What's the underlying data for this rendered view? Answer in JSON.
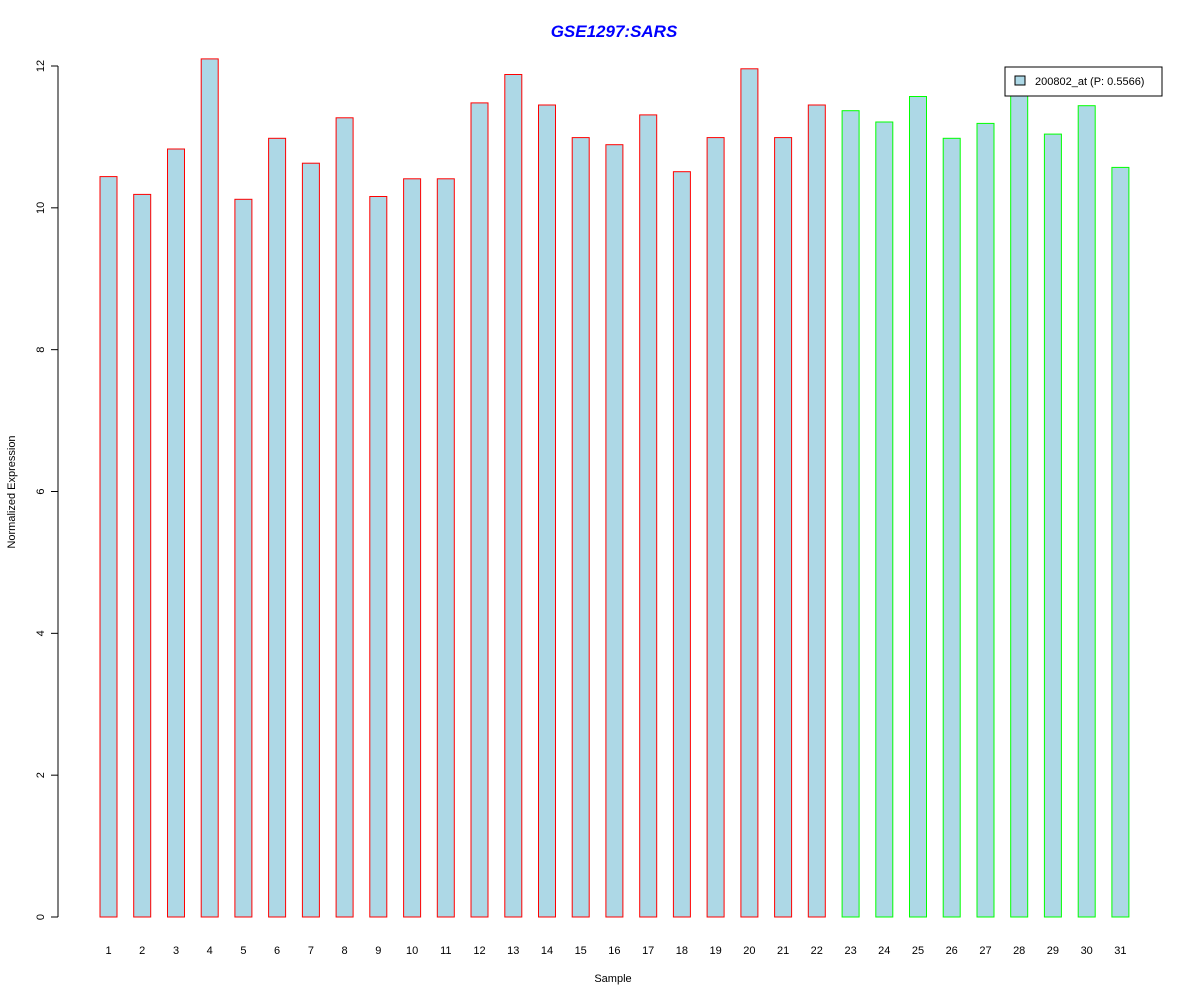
{
  "chart_data": {
    "type": "bar",
    "title": "GSE1297:SARS",
    "xlabel": "Sample",
    "ylabel": "Normalized Expression",
    "categories": [
      "1",
      "2",
      "3",
      "4",
      "5",
      "6",
      "7",
      "8",
      "9",
      "10",
      "11",
      "12",
      "13",
      "14",
      "15",
      "16",
      "17",
      "18",
      "19",
      "20",
      "21",
      "22",
      "23",
      "24",
      "25",
      "26",
      "27",
      "28",
      "29",
      "30",
      "31"
    ],
    "series": [
      {
        "name": "200802_at (P: 0.5566)",
        "values": [
          10.44,
          10.19,
          10.83,
          12.1,
          10.12,
          10.98,
          10.63,
          11.27,
          10.16,
          10.41,
          10.41,
          11.48,
          11.88,
          11.45,
          10.99,
          10.89,
          11.31,
          10.51,
          10.99,
          11.96,
          10.99,
          11.45,
          11.37,
          11.21,
          11.57,
          10.98,
          11.19,
          11.65,
          11.04,
          11.44,
          10.57
        ]
      }
    ],
    "groups": [
      "red",
      "red",
      "red",
      "red",
      "red",
      "red",
      "red",
      "red",
      "red",
      "red",
      "red",
      "red",
      "red",
      "red",
      "red",
      "red",
      "red",
      "red",
      "red",
      "red",
      "red",
      "red",
      "green",
      "green",
      "green",
      "green",
      "green",
      "green",
      "green",
      "green",
      "green"
    ],
    "ylim": [
      0,
      12
    ],
    "yticks": [
      0,
      2,
      4,
      6,
      8,
      10,
      12
    ],
    "grid": false,
    "legend_position": "top-right",
    "colors": {
      "bar_fill": "#add8e6",
      "group_red_border": "#ff0000",
      "group_green_border": "#00ff00",
      "title": "#0000ff"
    }
  }
}
